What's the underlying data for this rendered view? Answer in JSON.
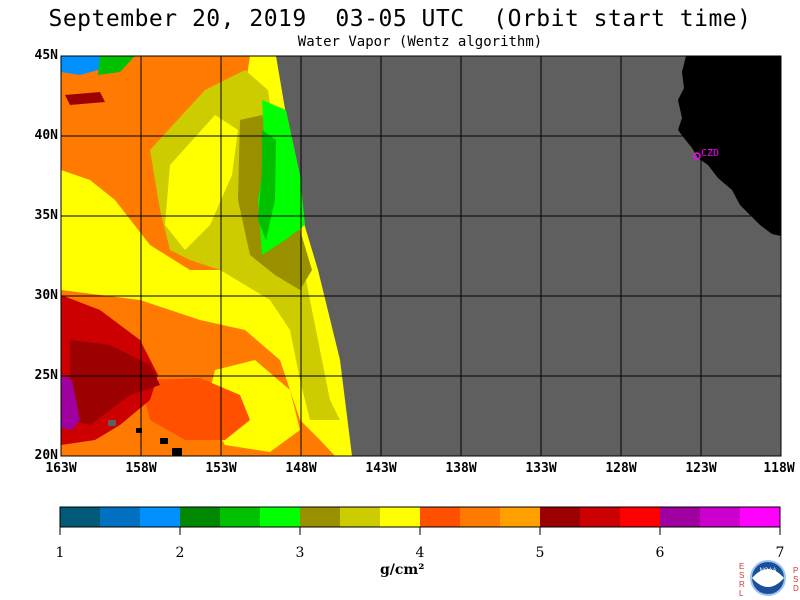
{
  "header": {
    "title": "September 20, 2019  03-05 UTC  (Orbit start time)",
    "subtitle": "Water Vapor (Wentz algorithm)"
  },
  "map": {
    "lat_labels": [
      "45N",
      "40N",
      "35N",
      "30N",
      "25N",
      "20N"
    ],
    "lon_labels": [
      "163W",
      "158W",
      "153W",
      "148W",
      "143W",
      "138W",
      "133W",
      "128W",
      "123W",
      "118W"
    ],
    "place_label": "CZD",
    "colors": {
      "no_data": "#5f5f5f",
      "land": "#000000",
      "grid": "#000000",
      "place_marker": "#ff00ff"
    }
  },
  "colorbar": {
    "ticks": [
      "1",
      "2",
      "3",
      "4",
      "5",
      "6",
      "7"
    ],
    "unit": "g/cm²",
    "colors": [
      "#005a78",
      "#0070c0",
      "#0090ff",
      "#008800",
      "#00c000",
      "#00ff00",
      "#999000",
      "#cccc00",
      "#ffff00",
      "#ff5000",
      "#ff7a00",
      "#ffa000",
      "#9c0000",
      "#cc0000",
      "#ff0000",
      "#a000a0",
      "#cc00cc",
      "#ff00ff"
    ]
  },
  "logo": {
    "left_text": [
      "E",
      "S",
      "R",
      "L"
    ],
    "right_text": [
      "P",
      "S",
      "D"
    ],
    "seal_text": "NOAA"
  }
}
